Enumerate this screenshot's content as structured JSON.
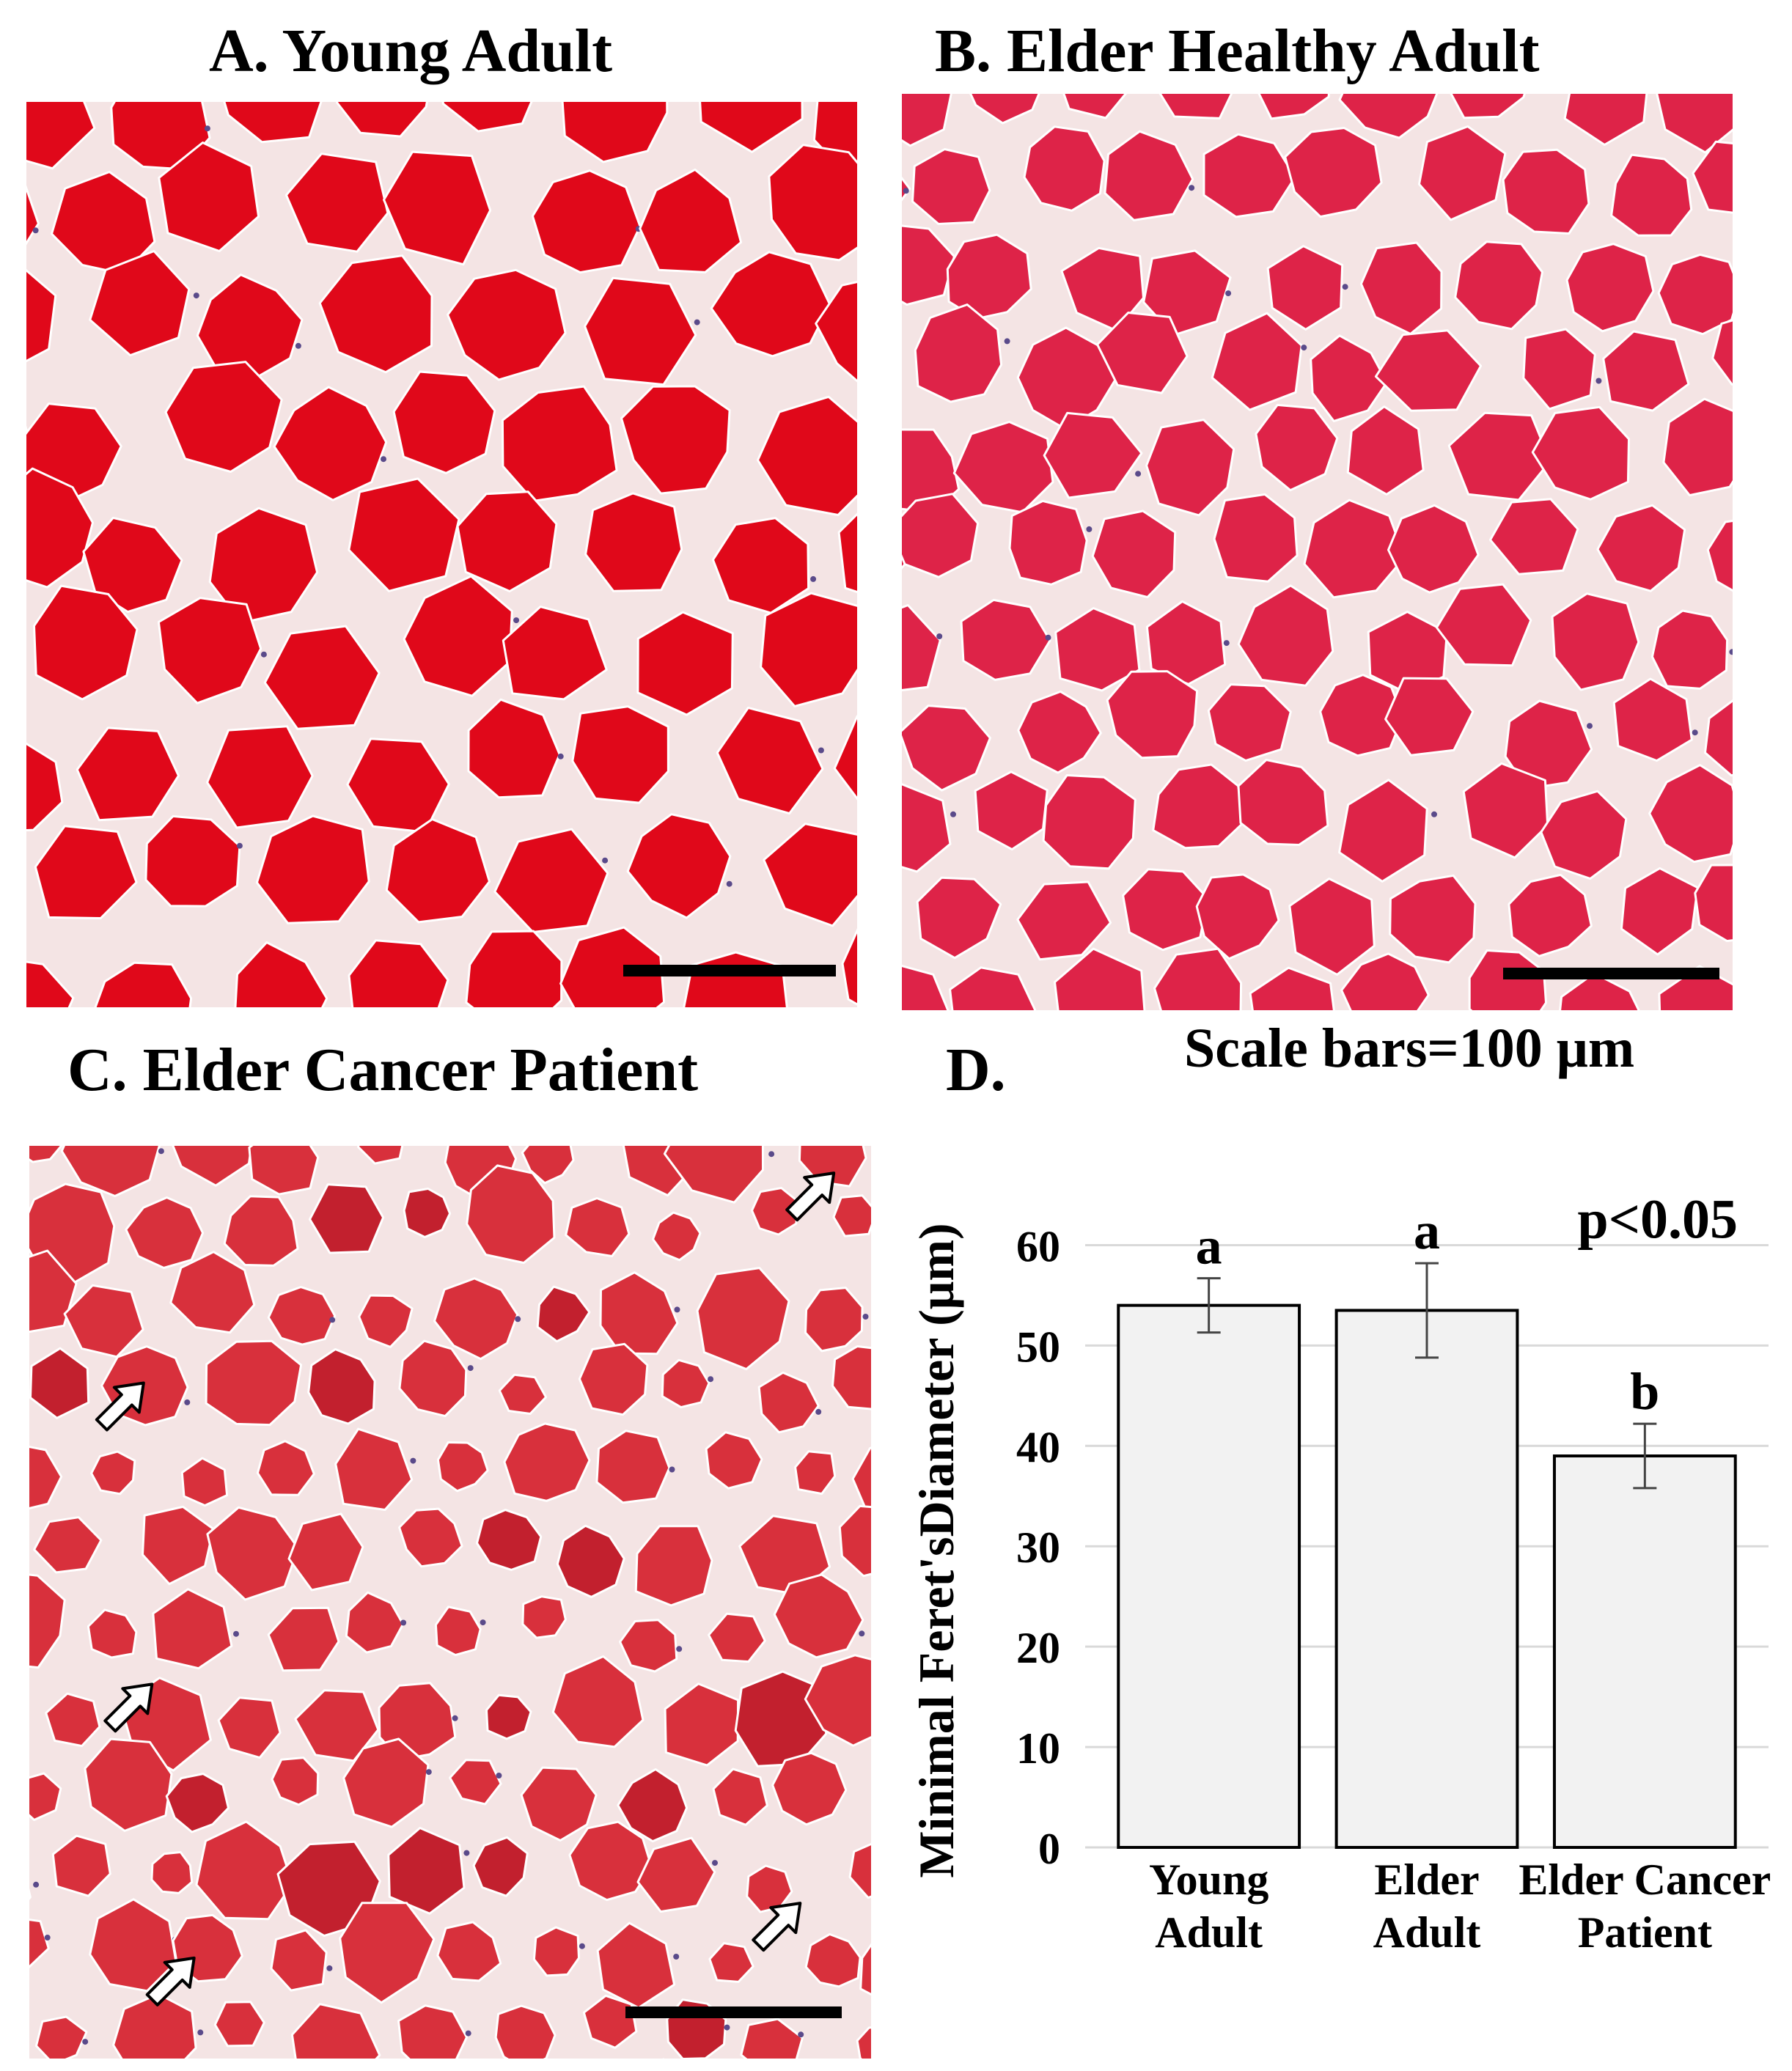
{
  "panels": [
    {
      "title": "A. Young Adult"
    },
    {
      "title": "B. Elder Healthy Adult"
    },
    {
      "title": "C. Elder Cancer Patient"
    },
    {
      "title": "D."
    }
  ],
  "scale_note": "Scale bars=100 μm",
  "colors": {
    "fiber_young": "#e0081a",
    "fiber_elder": "#de2348",
    "fiber_cancer": "#d8303c",
    "connective": "#f4e4e4",
    "nuclei": "#5a4a8a",
    "bar_fill": "#f2f2f2",
    "gridline": "#d9d9d9"
  },
  "chart_data": {
    "type": "bar",
    "categories": [
      [
        "Young",
        "Adult"
      ],
      [
        "Elder",
        "Adult"
      ],
      [
        "Elder  Cancer",
        "Patient"
      ]
    ],
    "values": [
      54.0,
      53.5,
      39.0
    ],
    "error": [
      2.7,
      4.7,
      3.2
    ],
    "letters": [
      "a",
      "a",
      "b"
    ],
    "ylabel": "Minimal  Feret'sDiameter (μm)",
    "yticks": [
      0,
      10,
      20,
      30,
      40,
      50,
      60
    ],
    "ylim": [
      0,
      65
    ],
    "annotation": "p<0.05",
    "grid": true
  }
}
